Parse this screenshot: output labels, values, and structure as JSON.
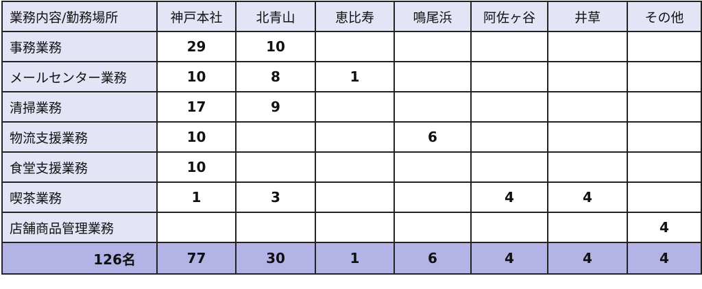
{
  "columns": [
    "業務内容/勤務場所",
    "神戸本社",
    "北青山",
    "恵比寿",
    "鳴尾浜",
    "阿佐ヶ谷",
    "井草",
    "その他"
  ],
  "rows": [
    {
      "label": "事務業務",
      "values": [
        "29",
        "10",
        "",
        "",
        "",
        "",
        ""
      ]
    },
    {
      "label": "メールセンター業務",
      "values": [
        "10",
        "8",
        "1",
        "",
        "",
        "",
        ""
      ]
    },
    {
      "label": "清掃業務",
      "values": [
        "17",
        "9",
        "",
        "",
        "",
        "",
        ""
      ]
    },
    {
      "label": "物流支援業務",
      "values": [
        "10",
        "",
        "",
        "6",
        "",
        "",
        ""
      ]
    },
    {
      "label": "食堂支援業務",
      "values": [
        "10",
        "",
        "",
        "",
        "",
        "",
        ""
      ]
    },
    {
      "label": "喫茶業務",
      "values": [
        "1",
        "3",
        "",
        "",
        "4",
        "4",
        ""
      ]
    },
    {
      "label": "店舗商品管理業務",
      "values": [
        "",
        "",
        "",
        "",
        "",
        "",
        "4"
      ]
    }
  ],
  "total": {
    "label": "126名",
    "values": [
      "77",
      "30",
      "1",
      "6",
      "4",
      "4",
      "4"
    ]
  },
  "colors": {
    "header_bg": "#e4e4f7",
    "total_bg": "#b3b3e6",
    "border": "#222222"
  }
}
